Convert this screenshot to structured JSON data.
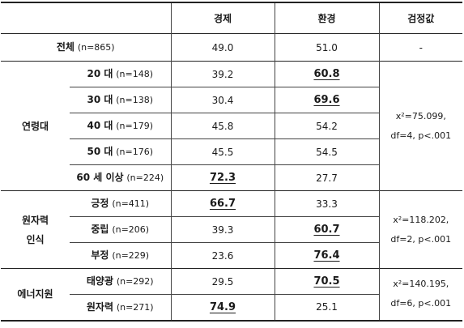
{
  "header": {
    "col_economy": "경제",
    "col_environment": "환경",
    "col_test": "검정값"
  },
  "total": {
    "label": "전체",
    "n": "(n=865)",
    "economy": "49.0",
    "environment": "51.0",
    "test": "-"
  },
  "age": {
    "group_label": "연령대",
    "rows": [
      {
        "label": "20 대",
        "n": "(n=148)",
        "economy": "39.2",
        "environment": "60.8"
      },
      {
        "label": "30 대",
        "n": "(n=138)",
        "economy": "30.4",
        "environment": "69.6"
      },
      {
        "label": "40 대",
        "n": "(n=179)",
        "economy": "45.8",
        "environment": "54.2"
      },
      {
        "label": "50 대",
        "n": "(n=176)",
        "economy": "45.5",
        "environment": "54.5"
      },
      {
        "label": "60 세 이상",
        "n": "(n=224)",
        "economy": "72.3",
        "environment": "27.7"
      }
    ],
    "test_line1": "x²=75.099,",
    "test_line2": "df=4, p<.001"
  },
  "nuclear": {
    "group_line1": "원자력",
    "group_line2": "인식",
    "rows": [
      {
        "label": "긍정",
        "n": "(n=411)",
        "economy": "66.7",
        "environment": "33.3"
      },
      {
        "label": "중립",
        "n": "(n=206)",
        "economy": "39.3",
        "environment": "60.7"
      },
      {
        "label": "부정",
        "n": "(n=229)",
        "economy": "23.6",
        "environment": "76.4"
      }
    ],
    "test_line1": "x²=118.202,",
    "test_line2": "df=2, p<.001"
  },
  "energy": {
    "group_label": "에너지원",
    "rows": [
      {
        "label": "태양광",
        "n": "(n=292)",
        "economy": "29.5",
        "environment": "70.5"
      },
      {
        "label": "원자력",
        "n": "(n=271)",
        "economy": "74.9",
        "environment": "25.1"
      }
    ],
    "test_line1": "x²=140.195,",
    "test_line2": "df=6, p<.001"
  }
}
